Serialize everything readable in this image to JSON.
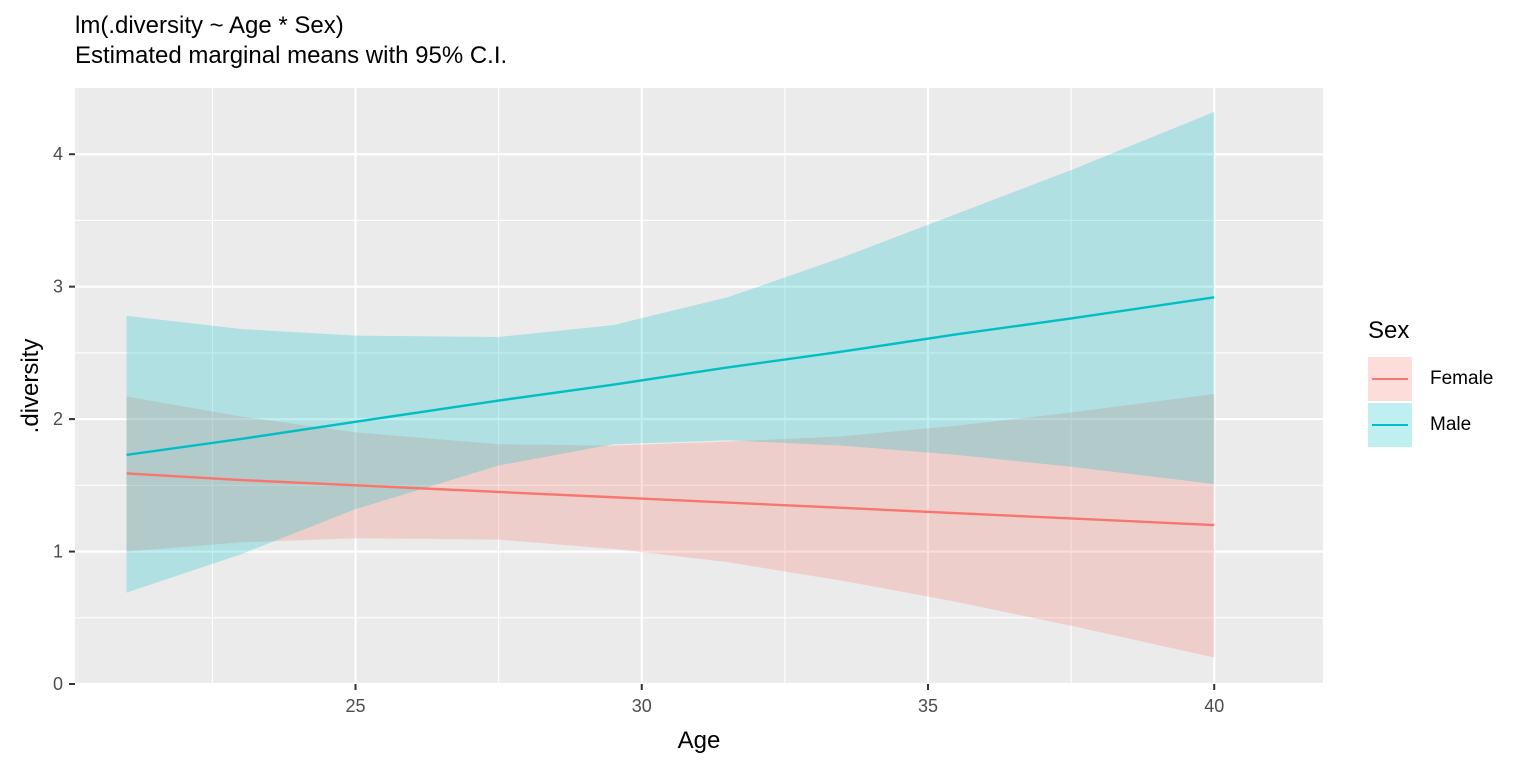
{
  "title": "lm(.diversity ~ Age * Sex)",
  "subtitle": "Estimated marginal means with 95% C.I.",
  "chart_data": {
    "type": "line",
    "xlabel": "Age",
    "ylabel": ".diversity",
    "xlim": [
      20.1,
      41.9
    ],
    "ylim": [
      0,
      4.5
    ],
    "x_ticks": [
      25,
      30,
      35,
      40
    ],
    "y_ticks": [
      0,
      1,
      2,
      3,
      4
    ],
    "grid": true,
    "legend": {
      "title": "Sex",
      "position": "right"
    },
    "x": [
      21,
      23,
      25,
      27.5,
      29.5,
      31.5,
      33.5,
      35.5,
      37.5,
      40
    ],
    "series": [
      {
        "name": "Female",
        "color": "#F8766D",
        "fit": [
          1.59,
          1.54,
          1.5,
          1.45,
          1.41,
          1.37,
          1.33,
          1.29,
          1.25,
          1.2
        ],
        "lower": [
          1.0,
          1.07,
          1.1,
          1.09,
          1.02,
          0.92,
          0.78,
          0.62,
          0.44,
          0.2
        ],
        "upper": [
          2.17,
          2.02,
          1.9,
          1.81,
          1.8,
          1.83,
          1.87,
          1.95,
          2.05,
          2.19
        ]
      },
      {
        "name": "Male",
        "color": "#00BFC4",
        "fit": [
          1.73,
          1.85,
          1.98,
          2.14,
          2.26,
          2.39,
          2.51,
          2.64,
          2.76,
          2.92
        ],
        "lower": [
          0.69,
          0.98,
          1.32,
          1.65,
          1.81,
          1.84,
          1.8,
          1.73,
          1.64,
          1.51
        ],
        "upper": [
          2.78,
          2.68,
          2.63,
          2.62,
          2.71,
          2.92,
          3.22,
          3.55,
          3.88,
          4.32
        ]
      }
    ]
  }
}
